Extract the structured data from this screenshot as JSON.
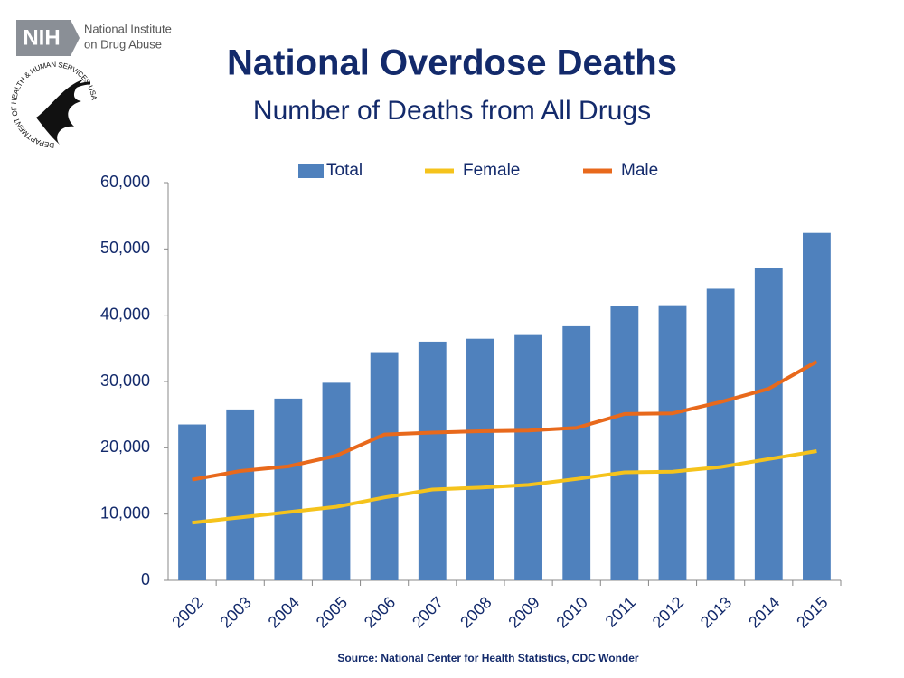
{
  "header": {
    "logo_text": "NIH",
    "logo_line1": "National Institute",
    "logo_line2": "on Drug Abuse",
    "seal_text": "DEPARTMENT OF HEALTH & HUMAN SERVICES·USA"
  },
  "chart_data": {
    "type": "bar",
    "title": "National Overdose Deaths",
    "subtitle": "Number of Deaths from All Drugs",
    "categories": [
      "2002",
      "2003",
      "2004",
      "2005",
      "2006",
      "2007",
      "2008",
      "2009",
      "2010",
      "2011",
      "2012",
      "2013",
      "2014",
      "2015"
    ],
    "series": [
      {
        "name": "Total",
        "type": "bar",
        "color": "#4f81bd",
        "values": [
          23518,
          25785,
          27424,
          29813,
          34425,
          36010,
          36450,
          37004,
          38329,
          41340,
          41502,
          43982,
          47055,
          52404
        ]
      },
      {
        "name": "Female",
        "type": "line",
        "color": "#f5c31c",
        "values": [
          8700,
          9500,
          10300,
          11100,
          12500,
          13700,
          14000,
          14400,
          15300,
          16300,
          16400,
          17100,
          18300,
          19500
        ]
      },
      {
        "name": "Male",
        "type": "line",
        "color": "#e8691c",
        "values": [
          15200,
          16500,
          17200,
          18800,
          22000,
          22300,
          22500,
          22600,
          23000,
          25100,
          25200,
          26900,
          28900,
          33000
        ]
      }
    ],
    "ylim": [
      0,
      60000
    ],
    "yticks": [
      0,
      {
        "value": 10000,
        "label": "10,000"
      },
      {
        "value": 20000,
        "label": "20,000"
      },
      {
        "value": 30000,
        "label": "30,000"
      },
      {
        "value": 40000,
        "label": "40,000"
      },
      {
        "value": 50000,
        "label": "50,000"
      },
      {
        "value": 60000,
        "label": "60,000"
      }
    ],
    "grid": false,
    "legend": "top",
    "source": "Source: National Center for Health Statistics, CDC Wonder"
  }
}
